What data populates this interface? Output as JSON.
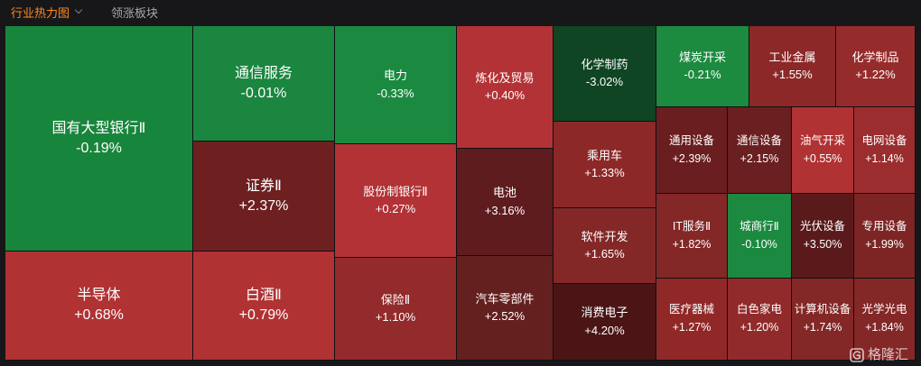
{
  "tabs": {
    "active_label": "行业热力图",
    "inactive_label": "领涨板块"
  },
  "watermark": {
    "brand_text": "格隆汇"
  },
  "colors": {
    "up_strong": "#6b1d1d",
    "up_medium": "#992a2d",
    "up_light": "#b13233",
    "down_strong": "#0f4422",
    "down_medium": "#1c8a3f",
    "background": "#17171a"
  },
  "heatmap": {
    "tiles": [
      {
        "name": "国有大型银行Ⅱ",
        "pct": "-0.19%"
      },
      {
        "name": "通信服务",
        "pct": "-0.01%"
      },
      {
        "name": "证券Ⅱ",
        "pct": "+2.37%"
      },
      {
        "name": "电力",
        "pct": "-0.33%"
      },
      {
        "name": "股份制银行Ⅱ",
        "pct": "+0.27%"
      },
      {
        "name": "保险Ⅱ",
        "pct": "+1.10%"
      },
      {
        "name": "炼化及贸易",
        "pct": "+0.40%"
      },
      {
        "name": "电池",
        "pct": "+3.16%"
      },
      {
        "name": "汽车零部件",
        "pct": "+2.52%"
      },
      {
        "name": "化学制药",
        "pct": "-3.02%"
      },
      {
        "name": "乘用车",
        "pct": "+1.33%"
      },
      {
        "name": "软件开发",
        "pct": "+1.65%"
      },
      {
        "name": "消费电子",
        "pct": "+4.20%"
      },
      {
        "name": "煤炭开采",
        "pct": "-0.21%"
      },
      {
        "name": "工业金属",
        "pct": "+1.55%"
      },
      {
        "name": "化学制品",
        "pct": "+1.22%"
      },
      {
        "name": "通用设备",
        "pct": "+2.39%"
      },
      {
        "name": "通信设备",
        "pct": "+2.15%"
      },
      {
        "name": "油气开采",
        "pct": "+0.55%"
      },
      {
        "name": "电网设备",
        "pct": "+1.14%"
      },
      {
        "name": "IT服务Ⅱ",
        "pct": "+1.82%"
      },
      {
        "name": "城商行Ⅱ",
        "pct": "-0.10%"
      },
      {
        "name": "光伏设备",
        "pct": "+3.50%"
      },
      {
        "name": "专用设备",
        "pct": "+1.99%"
      },
      {
        "name": "医疗器械",
        "pct": "+1.27%"
      },
      {
        "name": "白色家电",
        "pct": "+1.20%"
      },
      {
        "name": "计算机设备",
        "pct": "+1.74%"
      },
      {
        "name": "光学光电",
        "pct": "+1.84%"
      },
      {
        "name": "半导体",
        "pct": "+0.68%"
      },
      {
        "name": "白酒Ⅱ",
        "pct": "+0.79%"
      }
    ]
  }
}
